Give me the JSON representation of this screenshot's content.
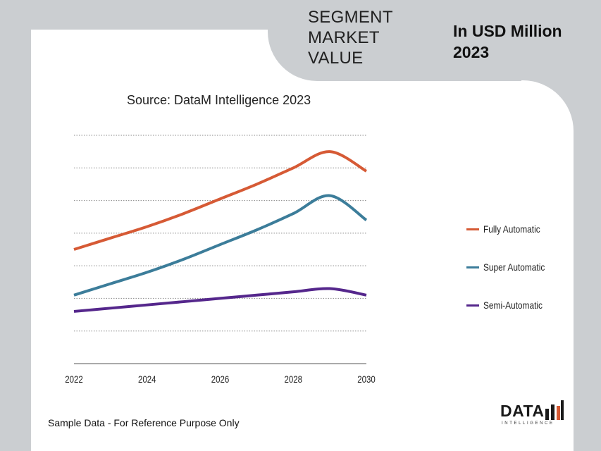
{
  "header": {
    "segment_title": "SEGMENT MARKET VALUE",
    "unit_title_line1": "In USD Million",
    "unit_title_line2": "2023"
  },
  "colors": {
    "background": "#cbced1",
    "card": "#ffffff",
    "gridline": "#8a8a8a"
  },
  "chart_data": {
    "type": "line",
    "title": "",
    "subtitle": "Source: DataM Intelligence 2023",
    "xlabel": "",
    "ylabel": "",
    "x": [
      2022,
      2023,
      2024,
      2025,
      2026,
      2027,
      2028,
      2029,
      2030
    ],
    "x_ticks": [
      "2022",
      "2024",
      "2026",
      "2028",
      "2030"
    ],
    "ylim": [
      0,
      7
    ],
    "y_gridlines": [
      1,
      2,
      3,
      4,
      5,
      6,
      7
    ],
    "grid": true,
    "legend": "right",
    "series": [
      {
        "name": "Fully Automatic",
        "color": "#d65a35",
        "values": [
          3.5,
          3.85,
          4.2,
          4.6,
          5.05,
          5.5,
          6.0,
          6.5,
          5.9
        ]
      },
      {
        "name": "Super Automatic",
        "color": "#3c7d9a",
        "values": [
          2.1,
          2.45,
          2.8,
          3.2,
          3.65,
          4.1,
          4.6,
          5.15,
          4.4
        ]
      },
      {
        "name": "Semi-Automatic",
        "color": "#55278c",
        "values": [
          1.6,
          1.7,
          1.8,
          1.9,
          2.0,
          2.1,
          2.2,
          2.3,
          2.1
        ]
      }
    ]
  },
  "footer": {
    "note": "Sample Data - For Reference Purpose Only",
    "logo_word": "DATA",
    "logo_sub": "INTELLIGENCE"
  }
}
